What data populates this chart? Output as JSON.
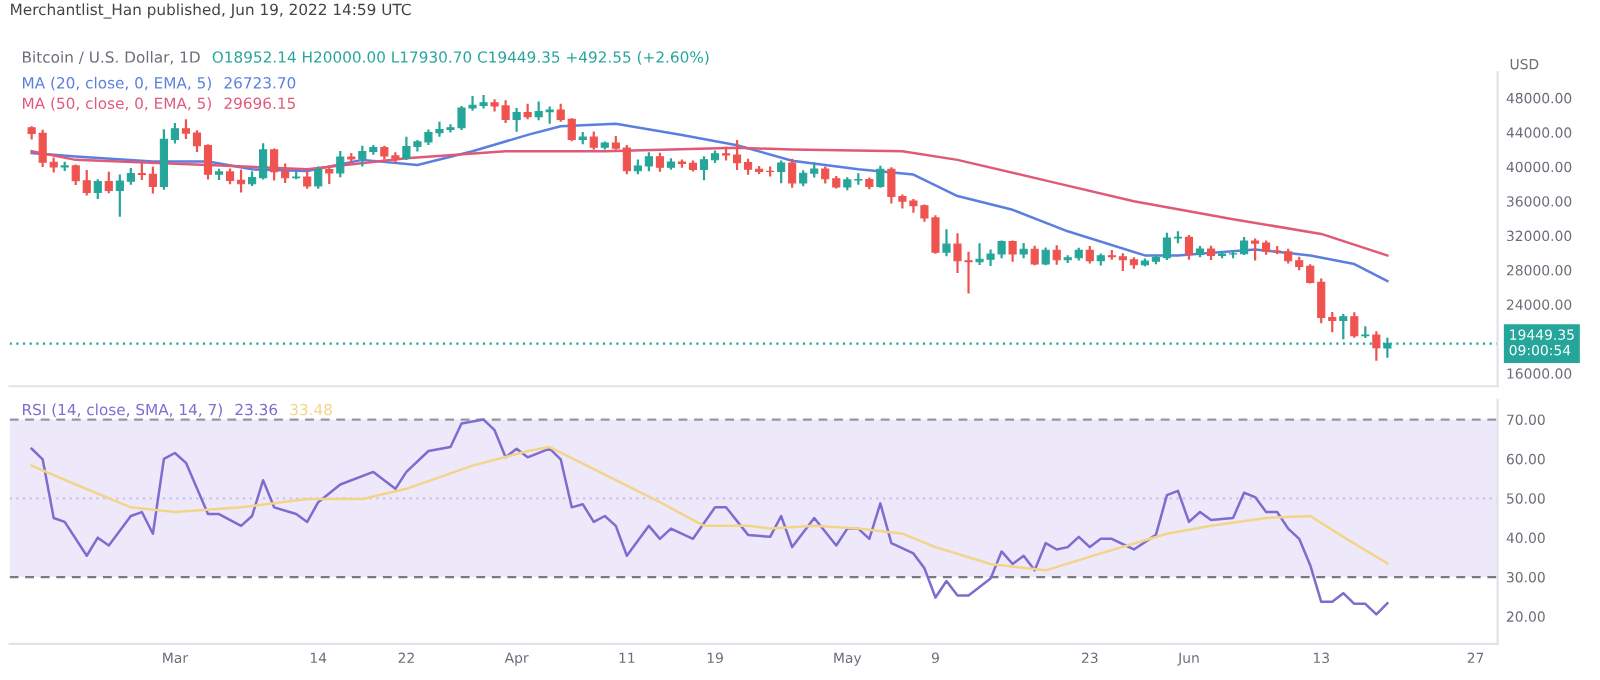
{
  "chart_data": [
    {
      "type": "candlestick",
      "title": "Bitcoin / U.S. Dollar, 1D",
      "subtitle": "Merchantlist_Han published, Jun 19, 2022 14:59 UTC",
      "annotations": [
        "O18952.14 H20000.00 L17930.70 C19449.35 +492.55 (+2.60%)",
        "26723.70",
        "29696.15"
      ],
      "ylabel": "USD",
      "x": [
        "2022-02-16",
        "2022-02-17",
        "2022-02-18",
        "2022-02-19",
        "2022-02-20",
        "2022-02-21",
        "2022-02-22",
        "2022-02-23",
        "2022-02-24",
        "2022-02-25",
        "2022-02-26",
        "2022-02-27",
        "2022-02-28",
        "2022-03-01",
        "2022-03-02",
        "2022-03-03",
        "2022-03-04",
        "2022-03-05",
        "2022-03-06",
        "2022-03-07",
        "2022-03-08",
        "2022-03-09",
        "2022-03-10",
        "2022-03-11",
        "2022-03-12",
        "2022-03-13",
        "2022-03-14",
        "2022-03-15",
        "2022-03-16",
        "2022-03-17",
        "2022-03-18",
        "2022-03-19",
        "2022-03-20",
        "2022-03-21",
        "2022-03-22",
        "2022-03-23",
        "2022-03-24",
        "2022-03-25",
        "2022-03-26",
        "2022-03-27",
        "2022-03-28",
        "2022-03-29",
        "2022-03-30",
        "2022-03-31",
        "2022-04-01",
        "2022-04-02",
        "2022-04-03",
        "2022-04-04",
        "2022-04-05",
        "2022-04-06",
        "2022-04-07",
        "2022-04-08",
        "2022-04-09",
        "2022-04-10",
        "2022-04-11",
        "2022-04-12",
        "2022-04-13",
        "2022-04-14",
        "2022-04-15",
        "2022-04-16",
        "2022-04-17",
        "2022-04-18",
        "2022-04-19",
        "2022-04-20",
        "2022-04-21",
        "2022-04-22",
        "2022-04-23",
        "2022-04-24",
        "2022-04-25",
        "2022-04-26",
        "2022-04-27",
        "2022-04-28",
        "2022-04-29",
        "2022-04-30",
        "2022-05-01",
        "2022-05-02",
        "2022-05-03",
        "2022-05-04",
        "2022-05-05",
        "2022-05-06",
        "2022-05-07",
        "2022-05-08",
        "2022-05-09",
        "2022-05-10",
        "2022-05-11",
        "2022-05-12",
        "2022-05-13",
        "2022-05-14",
        "2022-05-15",
        "2022-05-16",
        "2022-05-17",
        "2022-05-18",
        "2022-05-19",
        "2022-05-20",
        "2022-05-21",
        "2022-05-22",
        "2022-05-23",
        "2022-05-24",
        "2022-05-25",
        "2022-05-26",
        "2022-05-27",
        "2022-05-28",
        "2022-05-29",
        "2022-05-30",
        "2022-05-31",
        "2022-06-01",
        "2022-06-02",
        "2022-06-03",
        "2022-06-04",
        "2022-06-05",
        "2022-06-06",
        "2022-06-07",
        "2022-06-08",
        "2022-06-09",
        "2022-06-10",
        "2022-06-11",
        "2022-06-12",
        "2022-06-13",
        "2022-06-14",
        "2022-06-15",
        "2022-06-16",
        "2022-06-17",
        "2022-06-18",
        "2022-06-19"
      ],
      "ohlc": [
        [
          44540,
          44580,
          43310,
          43880
        ],
        [
          43880,
          44180,
          40090,
          40530
        ],
        [
          40530,
          40950,
          39450,
          39990
        ],
        [
          39990,
          40450,
          39650,
          40100
        ],
        [
          40100,
          40140,
          38020,
          38370
        ],
        [
          38370,
          39480,
          36800,
          37030
        ],
        [
          37030,
          38430,
          36380,
          38270
        ],
        [
          38270,
          39280,
          37060,
          37250
        ],
        [
          37250,
          38970,
          34320,
          38330
        ],
        [
          38330,
          39730,
          38030,
          39210
        ],
        [
          39210,
          40300,
          38580,
          39110
        ],
        [
          39110,
          39860,
          37010,
          37700
        ],
        [
          37700,
          44220,
          37450,
          43180
        ],
        [
          43180,
          44950,
          42820,
          44420
        ],
        [
          44420,
          45400,
          43350,
          43910
        ],
        [
          43910,
          44100,
          41850,
          42450
        ],
        [
          42450,
          42500,
          38650,
          39130
        ],
        [
          39130,
          39650,
          38600,
          39400
        ],
        [
          39400,
          39680,
          38100,
          38420
        ],
        [
          38420,
          39550,
          37150,
          38020
        ],
        [
          38020,
          39350,
          37880,
          38740
        ],
        [
          38740,
          42600,
          38650,
          41960
        ],
        [
          41960,
          42000,
          38540,
          39440
        ],
        [
          39440,
          40250,
          38230,
          38730
        ],
        [
          38730,
          39300,
          38680,
          38810
        ],
        [
          38810,
          39270,
          37580,
          37780
        ],
        [
          37780,
          39900,
          37580,
          39670
        ],
        [
          39670,
          39880,
          38130,
          39280
        ],
        [
          39280,
          41700,
          38900,
          41120
        ],
        [
          41120,
          41460,
          40530,
          40920
        ],
        [
          40920,
          42300,
          40150,
          41770
        ],
        [
          41770,
          42400,
          41510,
          42240
        ],
        [
          42240,
          42300,
          40930,
          41260
        ],
        [
          41260,
          41550,
          40520,
          41000
        ],
        [
          41000,
          43360,
          40900,
          42360
        ],
        [
          42360,
          42980,
          41900,
          42890
        ],
        [
          42890,
          44190,
          42650,
          43960
        ],
        [
          43960,
          45090,
          43620,
          44330
        ],
        [
          44330,
          44800,
          44100,
          44540
        ],
        [
          44540,
          46920,
          44410,
          46820
        ],
        [
          46820,
          48100,
          46630,
          47130
        ],
        [
          47130,
          48200,
          46900,
          47430
        ],
        [
          47430,
          47700,
          46560,
          47070
        ],
        [
          47070,
          47600,
          45200,
          45510
        ],
        [
          45510,
          46700,
          44200,
          46290
        ],
        [
          46290,
          47200,
          45650,
          45820
        ],
        [
          45820,
          47440,
          45520,
          46400
        ],
        [
          46400,
          46880,
          45120,
          46600
        ],
        [
          46600,
          47200,
          45360,
          45500
        ],
        [
          45500,
          45500,
          43100,
          43170
        ],
        [
          43170,
          43900,
          42750,
          43440
        ],
        [
          43440,
          43960,
          42110,
          42270
        ],
        [
          42270,
          42800,
          42130,
          42760
        ],
        [
          42760,
          43430,
          42100,
          42160
        ],
        [
          42160,
          42400,
          39250,
          39530
        ],
        [
          39530,
          40700,
          39250,
          40090
        ],
        [
          40090,
          41560,
          39600,
          41150
        ],
        [
          41150,
          41500,
          39560,
          39940
        ],
        [
          39940,
          40860,
          39780,
          40550
        ],
        [
          40550,
          40700,
          40020,
          40390
        ],
        [
          40390,
          40600,
          39570,
          39690
        ],
        [
          39690,
          41100,
          38560,
          40810
        ],
        [
          40810,
          41750,
          40570,
          41500
        ],
        [
          41500,
          42200,
          40850,
          41370
        ],
        [
          41370,
          42980,
          39750,
          40480
        ],
        [
          40480,
          40800,
          39200,
          39710
        ],
        [
          39710,
          39970,
          39300,
          39470
        ],
        [
          39470,
          39900,
          39000,
          39450
        ],
        [
          39450,
          40600,
          38200,
          40430
        ],
        [
          40430,
          40800,
          37700,
          38110
        ],
        [
          38110,
          39460,
          37870,
          39240
        ],
        [
          39240,
          40380,
          38870,
          39740
        ],
        [
          39740,
          39900,
          38180,
          38600
        ],
        [
          38600,
          38800,
          37600,
          37650
        ],
        [
          37650,
          38660,
          37400,
          38470
        ],
        [
          38470,
          39130,
          38050,
          38520
        ],
        [
          38520,
          38630,
          37520,
          37720
        ],
        [
          37720,
          40000,
          37680,
          39690
        ],
        [
          39690,
          39820,
          35860,
          36550
        ],
        [
          36550,
          36650,
          35270,
          36010
        ],
        [
          36010,
          36120,
          34780,
          35470
        ],
        [
          35470,
          35500,
          33730,
          34060
        ],
        [
          34060,
          34230,
          30030,
          30080
        ],
        [
          30080,
          32600,
          29730,
          31010
        ],
        [
          31010,
          32150,
          27780,
          29080
        ],
        [
          29080,
          30000,
          25400,
          28970
        ],
        [
          28970,
          30970,
          28710,
          29260
        ],
        [
          29260,
          30270,
          28600,
          29870
        ],
        [
          29870,
          31300,
          29500,
          31300
        ],
        [
          31300,
          31300,
          29100,
          29860
        ],
        [
          29860,
          31000,
          29490,
          30420
        ],
        [
          30420,
          30690,
          28700,
          28700
        ],
        [
          28700,
          30500,
          28700,
          30300
        ],
        [
          30300,
          30750,
          28750,
          29190
        ],
        [
          29190,
          29600,
          28950,
          29430
        ],
        [
          29430,
          30450,
          29240,
          30280
        ],
        [
          30280,
          30650,
          28880,
          29100
        ],
        [
          29100,
          29800,
          28650,
          29650
        ],
        [
          29650,
          30200,
          29320,
          29540
        ],
        [
          29540,
          29820,
          28020,
          29200
        ],
        [
          29200,
          29370,
          28280,
          28610
        ],
        [
          28610,
          29200,
          28570,
          29030
        ],
        [
          29030,
          29560,
          28800,
          29440
        ],
        [
          29440,
          32200,
          29300,
          31720
        ],
        [
          31720,
          32380,
          31250,
          31790
        ],
        [
          31790,
          31950,
          29330,
          29800
        ],
        [
          29800,
          30650,
          29620,
          30440
        ],
        [
          30440,
          30680,
          29300,
          29700
        ],
        [
          29700,
          29960,
          29490,
          29860
        ],
        [
          29860,
          30150,
          29500,
          29900
        ],
        [
          29900,
          31700,
          29880,
          31370
        ],
        [
          31370,
          31550,
          29250,
          31130
        ],
        [
          31130,
          31300,
          29900,
          30200
        ],
        [
          30200,
          30650,
          29950,
          30110
        ],
        [
          30110,
          30350,
          28880,
          29080
        ],
        [
          29080,
          29420,
          28110,
          28420
        ],
        [
          28420,
          28550,
          26570,
          26570
        ],
        [
          26570,
          26880,
          21950,
          22480
        ],
        [
          22480,
          23000,
          20900,
          22140
        ],
        [
          22140,
          22770,
          20100,
          22580
        ],
        [
          22580,
          22970,
          20260,
          20380
        ],
        [
          20380,
          21340,
          20230,
          20450
        ],
        [
          20450,
          20750,
          17600,
          18980
        ],
        [
          18952.14,
          20000,
          17930.7,
          19449.35
        ]
      ],
      "colors": [
        "#ef5350",
        "#ef5350",
        "#ef5350",
        "#26a69a",
        "#ef5350",
        "#ef5350",
        "#26a69a",
        "#ef5350",
        "#26a69a",
        "#26a69a",
        "#ef5350",
        "#ef5350",
        "#26a69a",
        "#26a69a",
        "#ef5350",
        "#ef5350",
        "#ef5350",
        "#26a69a",
        "#ef5350",
        "#ef5350",
        "#26a69a",
        "#26a69a",
        "#ef5350",
        "#ef5350",
        "#26a69a",
        "#ef5350",
        "#26a69a",
        "#ef5350",
        "#26a69a",
        "#ef5350",
        "#26a69a",
        "#26a69a",
        "#ef5350",
        "#ef5350",
        "#26a69a",
        "#26a69a",
        "#26a69a",
        "#26a69a",
        "#26a69a",
        "#26a69a",
        "#26a69a",
        "#26a69a",
        "#ef5350",
        "#ef5350",
        "#26a69a",
        "#ef5350",
        "#26a69a",
        "#26a69a",
        "#ef5350",
        "#ef5350",
        "#26a69a",
        "#ef5350",
        "#26a69a",
        "#ef5350",
        "#ef5350",
        "#26a69a",
        "#26a69a",
        "#ef5350",
        "#26a69a",
        "#ef5350",
        "#ef5350",
        "#26a69a",
        "#26a69a",
        "#ef5350",
        "#ef5350",
        "#ef5350",
        "#ef5350",
        "#ef5350",
        "#26a69a",
        "#ef5350",
        "#26a69a",
        "#26a69a",
        "#ef5350",
        "#ef5350",
        "#26a69a",
        "#26a69a",
        "#ef5350",
        "#26a69a",
        "#ef5350",
        "#ef5350",
        "#ef5350",
        "#ef5350",
        "#ef5350",
        "#26a69a",
        "#ef5350",
        "#ef5350",
        "#26a69a",
        "#26a69a",
        "#26a69a",
        "#ef5350",
        "#26a69a",
        "#ef5350",
        "#26a69a",
        "#ef5350",
        "#26a69a",
        "#26a69a",
        "#ef5350",
        "#26a69a",
        "#ef5350",
        "#ef5350",
        "#ef5350",
        "#26a69a",
        "#26a69a",
        "#26a69a",
        "#26a69a",
        "#ef5350",
        "#26a69a",
        "#ef5350",
        "#26a69a",
        "#26a69a",
        "#26a69a",
        "#ef5350",
        "#ef5350",
        "#ef5350",
        "#ef5350",
        "#ef5350",
        "#ef5350",
        "#ef5350",
        "#ef5350",
        "#26a69a",
        "#ef5350",
        "#26a69a",
        "#ef5350",
        "#26a69a"
      ],
      "series": [
        {
          "type": "line",
          "name": "MA (20, close, 0, EMA, 5)",
          "color": "#5b7fe0",
          "x": [
            "2022-02-16",
            "2022-02-20",
            "2022-02-27",
            "2022-03-04",
            "2022-03-08",
            "2022-03-13",
            "2022-03-18",
            "2022-03-23",
            "2022-03-28",
            "2022-04-02",
            "2022-04-05",
            "2022-04-10",
            "2022-04-16",
            "2022-04-21",
            "2022-04-26",
            "2022-05-02",
            "2022-05-07",
            "2022-05-11",
            "2022-05-16",
            "2022-05-21",
            "2022-05-28",
            "2022-05-31",
            "2022-06-07",
            "2022-06-12",
            "2022-06-16",
            "2022-06-19"
          ],
          "values": [
            41600,
            41200,
            40600,
            40600,
            39700,
            39500,
            40800,
            40200,
            41800,
            43700,
            44700,
            45000,
            43700,
            42500,
            40700,
            39700,
            39100,
            36600,
            35000,
            32500,
            29700,
            29700,
            30400,
            29700,
            28700,
            26723.7
          ]
        },
        {
          "type": "line",
          "name": "MA (50, close, 0, EMA, 5)",
          "color": "#e05a78",
          "x": [
            "2022-02-16",
            "2022-02-20",
            "2022-03-04",
            "2022-03-13",
            "2022-03-22",
            "2022-03-31",
            "2022-04-09",
            "2022-04-21",
            "2022-04-26",
            "2022-05-06",
            "2022-05-11",
            "2022-05-20",
            "2022-05-27",
            "2022-06-05",
            "2022-06-13",
            "2022-06-19"
          ],
          "values": [
            41800,
            40800,
            40200,
            39700,
            41000,
            41800,
            41800,
            42200,
            42000,
            41800,
            40800,
            38100,
            36000,
            33900,
            32200,
            29696.15
          ]
        }
      ],
      "xlim": [
        "2022-02-14",
        "2022-06-29"
      ],
      "ylim": [
        14500,
        51000
      ],
      "yticks": [
        {
          "value": 16000,
          "label": "16000.00"
        },
        {
          "value": 24000,
          "label": "24000.00"
        },
        {
          "value": 28000,
          "label": "28000.00"
        },
        {
          "value": 32000,
          "label": "32000.00"
        },
        {
          "value": 36000,
          "label": "36000.00"
        },
        {
          "value": 40000,
          "label": "40000.00"
        },
        {
          "value": 44000,
          "label": "44000.00"
        },
        {
          "value": 48000,
          "label": "48000.00"
        }
      ],
      "ref_lines": [
        {
          "axis": "y",
          "value": 19449.35,
          "label": "19449.35\n09:00:54",
          "color": "#26a69a",
          "line_style": "dotted"
        }
      ],
      "tick_labels": "y",
      "legend": "top left"
    },
    {
      "type": "line",
      "annotations": [
        "23.36",
        "33.48"
      ],
      "series": [
        {
          "name": "RSI (14, close, SMA, 14, 7)",
          "color": "#7e6ccf",
          "x": [
            "2022-02-16",
            "2022-02-17",
            "2022-02-18",
            "2022-02-19",
            "2022-02-21",
            "2022-02-22",
            "2022-02-23",
            "2022-02-25",
            "2022-02-26",
            "2022-02-27",
            "2022-02-28",
            "2022-03-01",
            "2022-03-02",
            "2022-03-04",
            "2022-03-05",
            "2022-03-07",
            "2022-03-08",
            "2022-03-09",
            "2022-03-10",
            "2022-03-12",
            "2022-03-13",
            "2022-03-14",
            "2022-03-16",
            "2022-03-19",
            "2022-03-21",
            "2022-03-22",
            "2022-03-24",
            "2022-03-26",
            "2022-03-27",
            "2022-03-29",
            "2022-03-30",
            "2022-03-31",
            "2022-04-01",
            "2022-04-02",
            "2022-04-04",
            "2022-04-05",
            "2022-04-06",
            "2022-04-07",
            "2022-04-08",
            "2022-04-09",
            "2022-04-10",
            "2022-04-11",
            "2022-04-13",
            "2022-04-14",
            "2022-04-15",
            "2022-04-17",
            "2022-04-19",
            "2022-04-20",
            "2022-04-22",
            "2022-04-24",
            "2022-04-25",
            "2022-04-26",
            "2022-04-28",
            "2022-04-30",
            "2022-05-01",
            "2022-05-02",
            "2022-05-03",
            "2022-05-04",
            "2022-05-05",
            "2022-05-07",
            "2022-05-08",
            "2022-05-09",
            "2022-05-10",
            "2022-05-11",
            "2022-05-12",
            "2022-05-14",
            "2022-05-15",
            "2022-05-16",
            "2022-05-17",
            "2022-05-18",
            "2022-05-19",
            "2022-05-20",
            "2022-05-21",
            "2022-05-22",
            "2022-05-23",
            "2022-05-24",
            "2022-05-25",
            "2022-05-27",
            "2022-05-29",
            "2022-05-30",
            "2022-05-31",
            "2022-06-01",
            "2022-06-02",
            "2022-06-03",
            "2022-06-05",
            "2022-06-06",
            "2022-06-07",
            "2022-06-08",
            "2022-06-09",
            "2022-06-10",
            "2022-06-11",
            "2022-06-12",
            "2022-06-13",
            "2022-06-14",
            "2022-06-15",
            "2022-06-16",
            "2022-06-17",
            "2022-06-18",
            "2022-06-19"
          ],
          "values": [
            62.6,
            59.9,
            45,
            44,
            35.4,
            40,
            38,
            45.5,
            46.5,
            41,
            60,
            61.5,
            59,
            46,
            46,
            43,
            45.5,
            54.6,
            47.7,
            46,
            44,
            49,
            53.5,
            56.7,
            52.4,
            56.7,
            62,
            63,
            69,
            70,
            67.3,
            60.4,
            62.6,
            60.4,
            62.6,
            59.9,
            47.7,
            48.5,
            44,
            45.5,
            43,
            35.4,
            43,
            39.7,
            42.3,
            39.7,
            47.7,
            47.7,
            40.7,
            40.2,
            45.5,
            37.6,
            45,
            38,
            42.3,
            42.3,
            39.7,
            48.7,
            38.6,
            36,
            32.2,
            24.8,
            29,
            25.3,
            25.3,
            29.6,
            36.5,
            33.3,
            35.4,
            31.7,
            38.6,
            37,
            37.6,
            40.2,
            37.6,
            39.7,
            39.7,
            37,
            40.7,
            50.8,
            51.9,
            44,
            46.5,
            44.5,
            45,
            51.4,
            50.3,
            46.5,
            46.5,
            42.3,
            39.7,
            33,
            23.7,
            23.7,
            25.9,
            23.2,
            23.2,
            20.5,
            23.36
          ]
        },
        {
          "color": "#f3d58a",
          "x": [
            "2022-02-16",
            "2022-02-20",
            "2022-02-25",
            "2022-03-01",
            "2022-03-07",
            "2022-03-13",
            "2022-03-18",
            "2022-03-22",
            "2022-03-28",
            "2022-04-02",
            "2022-04-04",
            "2022-04-09",
            "2022-04-14",
            "2022-04-18",
            "2022-04-22",
            "2022-04-24",
            "2022-04-28",
            "2022-05-02",
            "2022-05-06",
            "2022-05-09",
            "2022-05-14",
            "2022-05-19",
            "2022-05-24",
            "2022-05-30",
            "2022-06-03",
            "2022-06-08",
            "2022-06-12",
            "2022-06-15",
            "2022-06-19"
          ],
          "values": [
            58.3,
            53.5,
            47.7,
            46.5,
            47.7,
            49.8,
            49.8,
            52.4,
            58.3,
            62,
            63,
            56,
            49,
            43,
            43,
            42.3,
            43,
            42.3,
            41,
            37.6,
            33.3,
            31.7,
            36,
            41,
            43,
            45,
            45.5,
            40.2,
            33.48
          ]
        }
      ],
      "xlim": [
        "2022-02-14",
        "2022-06-29"
      ],
      "xticks": [
        {
          "value": "2022-03-01",
          "label": "Mar"
        },
        {
          "value": "2022-03-14",
          "label": "14"
        },
        {
          "value": "2022-03-22",
          "label": "22"
        },
        {
          "value": "2022-04-01",
          "label": "Apr"
        },
        {
          "value": "2022-04-11",
          "label": "11"
        },
        {
          "value": "2022-04-19",
          "label": "19"
        },
        {
          "value": "2022-05-01",
          "label": "May"
        },
        {
          "value": "2022-05-09",
          "label": "9"
        },
        {
          "value": "2022-05-23",
          "label": "23"
        },
        {
          "value": "2022-06-01",
          "label": "Jun"
        },
        {
          "value": "2022-06-13",
          "label": "13"
        },
        {
          "value": "2022-06-27",
          "label": "27"
        }
      ],
      "ylim": [
        13,
        75
      ],
      "yticks": [
        {
          "value": 20,
          "label": "20.00"
        },
        {
          "value": 30,
          "label": "30.00"
        },
        {
          "value": 40,
          "label": "40.00"
        },
        {
          "value": 50,
          "label": "50.00"
        },
        {
          "value": 60,
          "label": "60.00"
        },
        {
          "value": 70,
          "label": "70.00"
        }
      ],
      "ref_lines": [
        {
          "axis": "y",
          "value": 70,
          "color": "#9598a1",
          "line_style": "dashed"
        },
        {
          "axis": "y",
          "value": 50,
          "color": "#c9c3e6",
          "line_style": "dotted"
        },
        {
          "axis": "y",
          "value": 30,
          "color": "#787b86",
          "line_style": "dashed"
        }
      ],
      "bands": [
        {
          "axis": "y",
          "from": 30,
          "to": 70,
          "color": "#ede8fa"
        }
      ],
      "legend": "top left"
    }
  ]
}
